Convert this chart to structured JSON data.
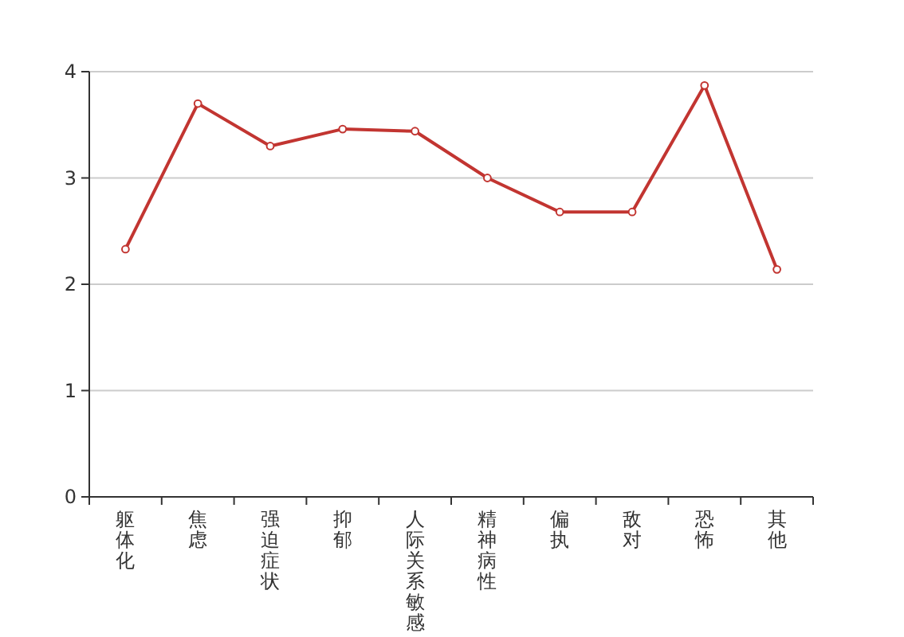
{
  "chart_data": {
    "type": "line",
    "categories": [
      "躯体化",
      "焦虑",
      "强迫症状",
      "抑郁",
      "人际关系敏感",
      "精神病性",
      "偏执",
      "敌对",
      "恐怖",
      "其他"
    ],
    "series": [
      {
        "color": "#c23531",
        "values": [
          2.33,
          3.7,
          3.3,
          3.46,
          3.44,
          3.0,
          2.68,
          2.68,
          3.87,
          2.14
        ]
      }
    ],
    "ylim": [
      0,
      4
    ],
    "yticks": [
      0,
      1,
      2,
      3,
      4
    ],
    "grid": "y",
    "marker": "circle",
    "line_style": "solid"
  }
}
